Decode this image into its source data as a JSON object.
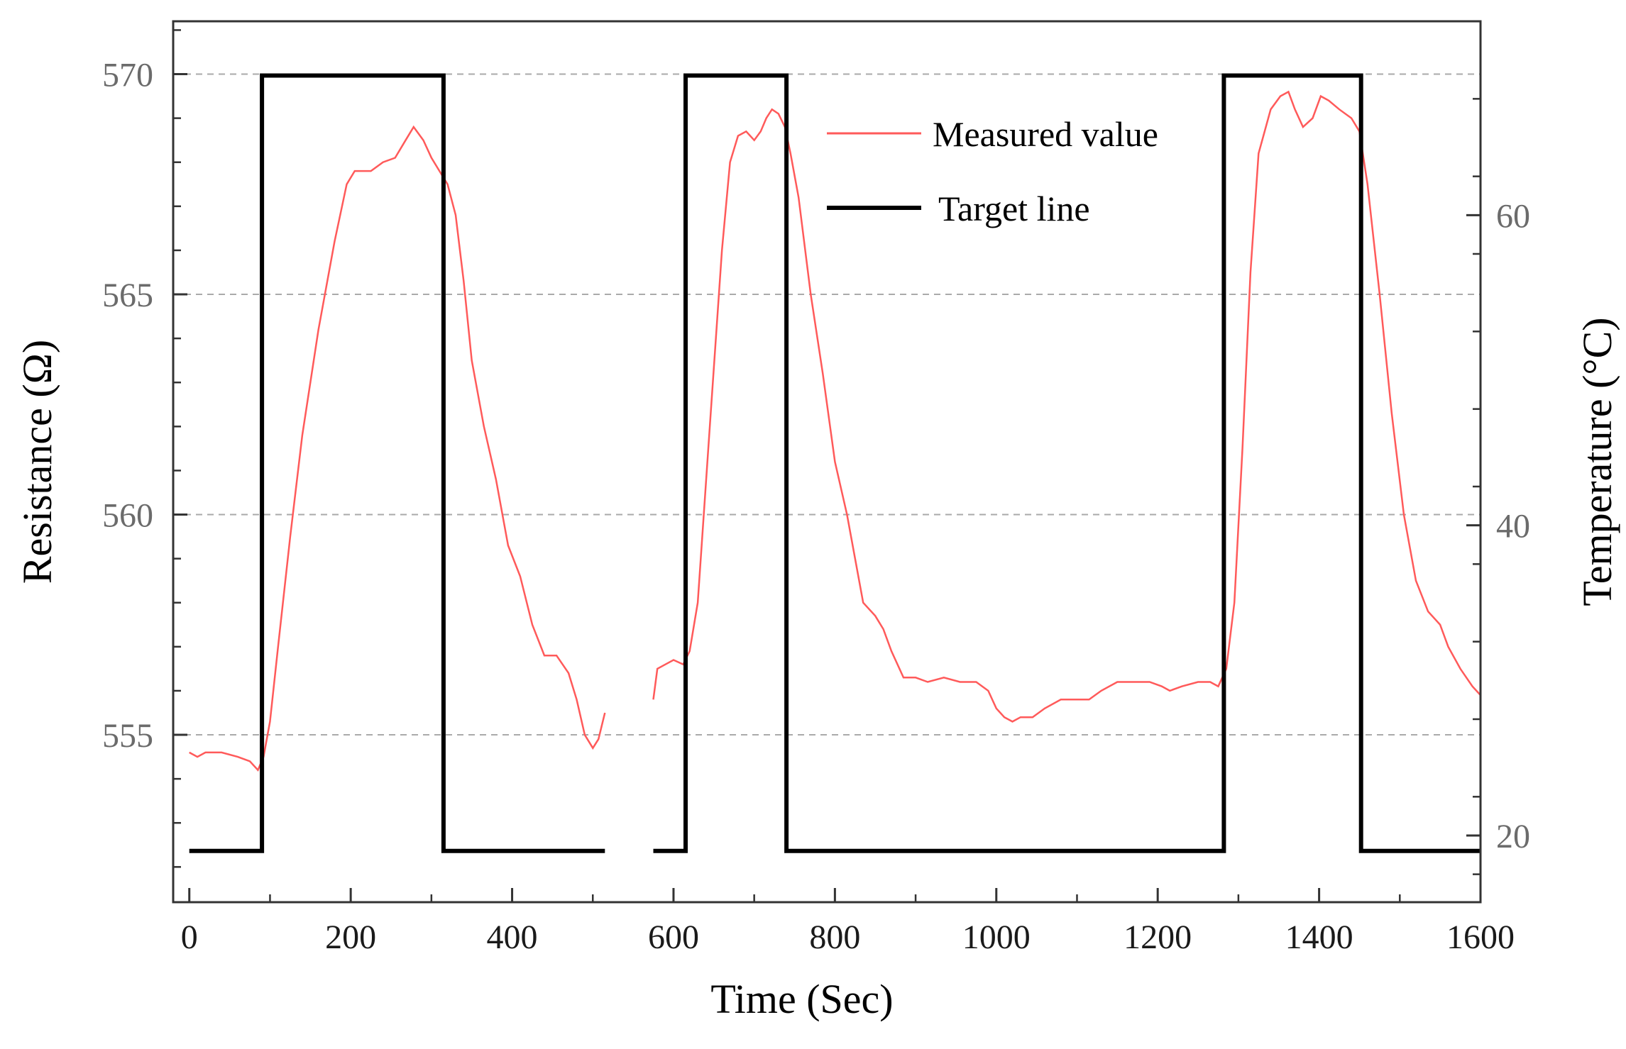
{
  "chart_data": {
    "type": "line",
    "title": "",
    "xlabel": "Time (Sec)",
    "ylabel": "Resistance (Ω)",
    "y2label": "Temperature (°C)",
    "xlim": [
      -20,
      1600
    ],
    "ylim": [
      551.2,
      571.2
    ],
    "y2lim": [
      15.7,
      72.5
    ],
    "xticks": [
      0,
      200,
      400,
      600,
      800,
      1000,
      1200,
      1400,
      1600
    ],
    "yticks": [
      555,
      560,
      565,
      570
    ],
    "y2ticks": [
      20,
      40,
      60
    ],
    "grid": "horizontal dashed at left-axis major ticks",
    "legend": {
      "position": "top-center",
      "entries": [
        {
          "label": "Measured value",
          "color": "#ff5a5a"
        },
        {
          "label": "Target line",
          "color": "#000000"
        }
      ]
    },
    "series": [
      {
        "name": "Measured value",
        "axis": "left",
        "color": "#ff5a5a",
        "segments": [
          [
            [
              0,
              554.6
            ],
            [
              10,
              554.5
            ],
            [
              20,
              554.6
            ],
            [
              40,
              554.6
            ],
            [
              60,
              554.5
            ],
            [
              75,
              554.4
            ],
            [
              85,
              554.2
            ],
            [
              92,
              554.5
            ],
            [
              100,
              555.3
            ],
            [
              110,
              557.0
            ],
            [
              125,
              559.5
            ],
            [
              140,
              561.8
            ],
            [
              160,
              564.2
            ],
            [
              180,
              566.2
            ],
            [
              195,
              567.5
            ],
            [
              205,
              567.8
            ],
            [
              225,
              567.8
            ],
            [
              240,
              568.0
            ],
            [
              255,
              568.1
            ],
            [
              268,
              568.5
            ],
            [
              278,
              568.8
            ],
            [
              290,
              568.5
            ],
            [
              300,
              568.1
            ],
            [
              310,
              567.8
            ],
            [
              320,
              567.5
            ],
            [
              330,
              566.8
            ],
            [
              340,
              565.3
            ],
            [
              350,
              563.5
            ],
            [
              365,
              562.0
            ],
            [
              380,
              560.8
            ],
            [
              395,
              559.3
            ],
            [
              410,
              558.6
            ],
            [
              425,
              557.5
            ],
            [
              440,
              556.8
            ],
            [
              455,
              556.8
            ],
            [
              470,
              556.4
            ],
            [
              480,
              555.8
            ],
            [
              490,
              555.0
            ],
            [
              500,
              554.7
            ],
            [
              507,
              554.9
            ],
            [
              515,
              555.5
            ]
          ],
          [
            [
              575,
              555.8
            ],
            [
              580,
              556.5
            ],
            [
              590,
              556.6
            ],
            [
              600,
              556.7
            ],
            [
              612,
              556.6
            ],
            [
              620,
              556.9
            ],
            [
              630,
              558.0
            ],
            [
              645,
              562.0
            ],
            [
              660,
              566.0
            ],
            [
              670,
              568.0
            ],
            [
              680,
              568.6
            ],
            [
              690,
              568.7
            ],
            [
              700,
              568.5
            ],
            [
              708,
              568.7
            ],
            [
              715,
              569.0
            ],
            [
              722,
              569.2
            ],
            [
              730,
              569.1
            ],
            [
              738,
              568.8
            ],
            [
              745,
              568.2
            ],
            [
              755,
              567.2
            ],
            [
              770,
              565.0
            ],
            [
              785,
              563.2
            ],
            [
              800,
              561.2
            ],
            [
              815,
              560.0
            ],
            [
              825,
              559.0
            ],
            [
              835,
              558.0
            ],
            [
              850,
              557.7
            ],
            [
              860,
              557.4
            ],
            [
              870,
              556.9
            ],
            [
              885,
              556.3
            ],
            [
              900,
              556.3
            ],
            [
              915,
              556.2
            ],
            [
              935,
              556.3
            ],
            [
              955,
              556.2
            ],
            [
              975,
              556.2
            ],
            [
              990,
              556.0
            ],
            [
              1000,
              555.6
            ],
            [
              1010,
              555.4
            ],
            [
              1020,
              555.3
            ],
            [
              1030,
              555.4
            ],
            [
              1045,
              555.4
            ],
            [
              1060,
              555.6
            ],
            [
              1080,
              555.8
            ],
            [
              1100,
              555.8
            ],
            [
              1115,
              555.8
            ],
            [
              1130,
              556.0
            ],
            [
              1150,
              556.2
            ],
            [
              1170,
              556.2
            ],
            [
              1190,
              556.2
            ],
            [
              1205,
              556.1
            ],
            [
              1215,
              556.0
            ],
            [
              1230,
              556.1
            ],
            [
              1250,
              556.2
            ],
            [
              1265,
              556.2
            ],
            [
              1275,
              556.1
            ],
            [
              1285,
              556.5
            ],
            [
              1295,
              558.0
            ],
            [
              1305,
              561.5
            ],
            [
              1315,
              565.5
            ],
            [
              1325,
              568.2
            ],
            [
              1340,
              569.2
            ],
            [
              1352,
              569.5
            ],
            [
              1362,
              569.6
            ],
            [
              1370,
              569.2
            ],
            [
              1380,
              568.8
            ],
            [
              1392,
              569.0
            ],
            [
              1402,
              569.5
            ],
            [
              1412,
              569.4
            ],
            [
              1425,
              569.2
            ],
            [
              1440,
              569.0
            ],
            [
              1450,
              568.7
            ],
            [
              1460,
              567.5
            ],
            [
              1475,
              565.0
            ],
            [
              1490,
              562.3
            ],
            [
              1505,
              560.0
            ],
            [
              1520,
              558.5
            ],
            [
              1535,
              557.8
            ],
            [
              1550,
              557.5
            ],
            [
              1560,
              557.0
            ],
            [
              1575,
              556.5
            ],
            [
              1590,
              556.1
            ],
            [
              1600,
              555.9
            ]
          ]
        ]
      },
      {
        "name": "Target line",
        "axis": "right",
        "color": "#000000",
        "segments": [
          [
            [
              0,
              19
            ],
            [
              90,
              19
            ],
            [
              90,
              69
            ],
            [
              315,
              69
            ],
            [
              315,
              19
            ],
            [
              515,
              19
            ]
          ],
          [
            [
              575,
              19
            ],
            [
              615,
              19
            ],
            [
              615,
              69
            ],
            [
              740,
              69
            ],
            [
              740,
              19
            ],
            [
              1282,
              19
            ],
            [
              1282,
              69
            ],
            [
              1452,
              69
            ],
            [
              1452,
              19
            ],
            [
              1600,
              19
            ]
          ]
        ]
      }
    ]
  }
}
